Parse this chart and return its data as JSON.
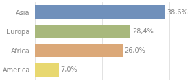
{
  "categories": [
    "Asia",
    "Europa",
    "Africa",
    "America"
  ],
  "values": [
    38.6,
    28.4,
    26.0,
    7.0
  ],
  "bar_colors": [
    "#7090bb",
    "#a8b87c",
    "#dba878",
    "#e8d870"
  ],
  "labels": [
    "38,6%",
    "28,4%",
    "26,0%",
    "7,0%"
  ],
  "xlim": [
    0,
    46
  ],
  "background_color": "#ffffff",
  "bar_height": 0.72,
  "label_fontsize": 7.0,
  "tick_fontsize": 7.0,
  "label_color": "#888888",
  "tick_color": "#888888"
}
